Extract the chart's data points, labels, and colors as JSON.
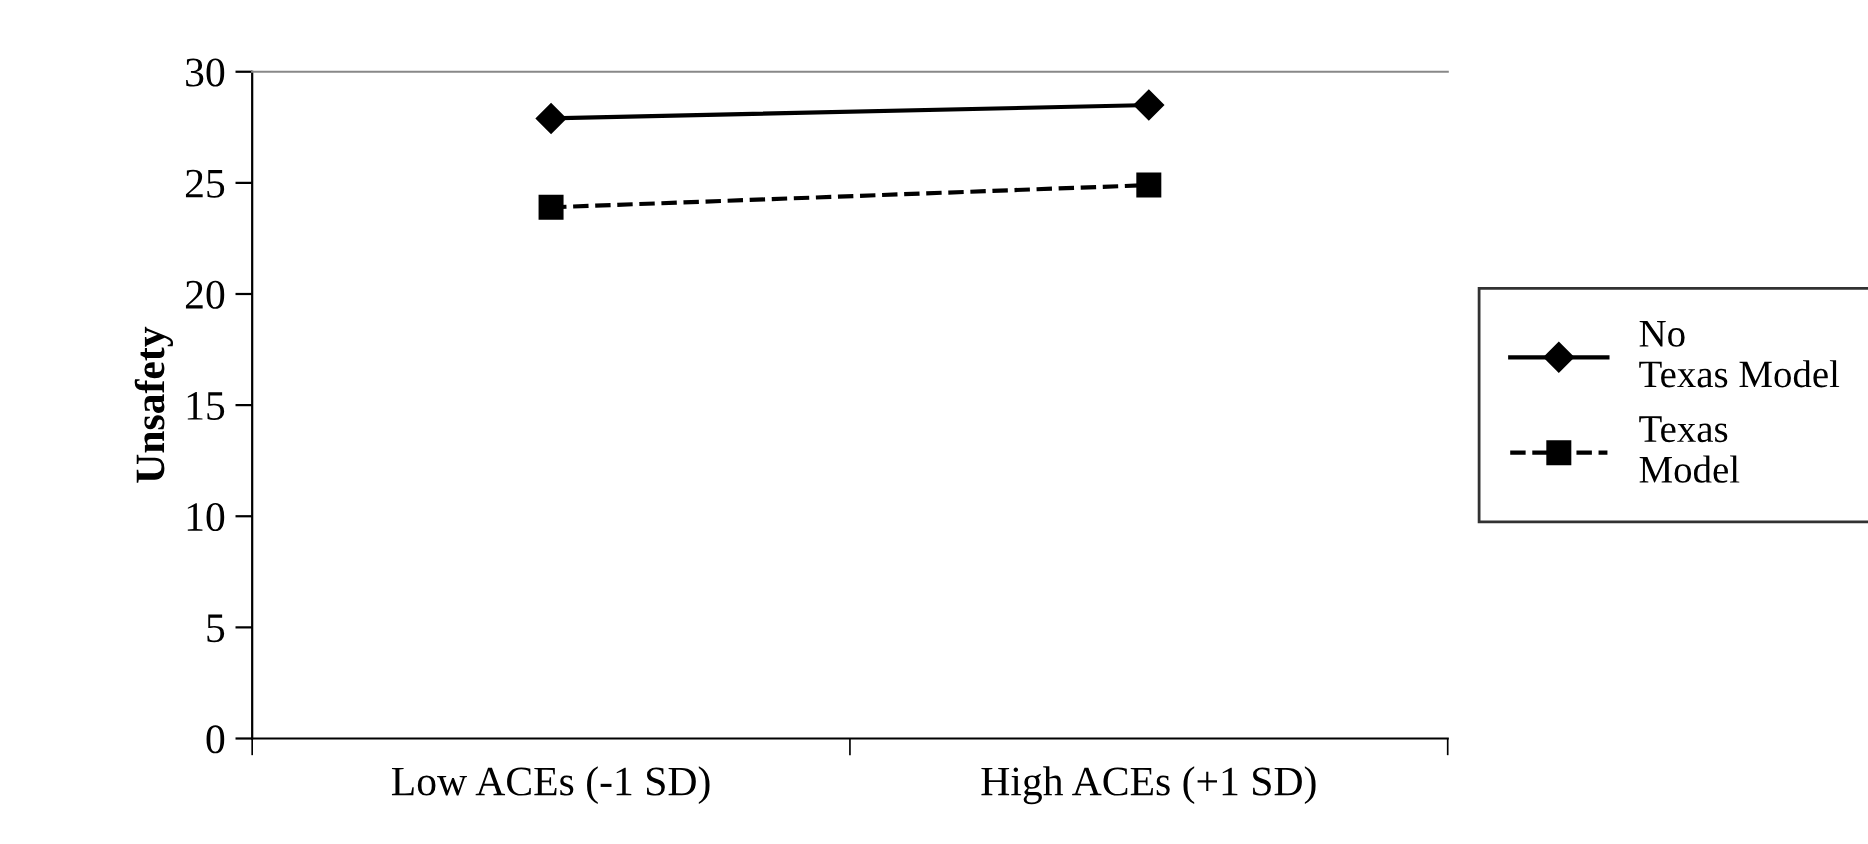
{
  "chart_data": {
    "type": "line",
    "ylabel": "Unsafety",
    "categories": [
      "Low ACEs (-1 SD)",
      "High ACEs (+1 SD)"
    ],
    "series": [
      {
        "name": "No Texas Model",
        "color": "#000000",
        "values": [
          27.9,
          28.5
        ],
        "marker": "diamond",
        "line_style": "solid"
      },
      {
        "name": "Texas Model",
        "color": "#000000",
        "values": [
          23.9,
          24.9
        ],
        "marker": "square",
        "line_style": "dashed"
      }
    ],
    "ylim": [
      0,
      30
    ],
    "yticks": [
      0,
      5,
      10,
      15,
      20,
      25,
      30
    ],
    "grid": false,
    "legend": "right"
  }
}
